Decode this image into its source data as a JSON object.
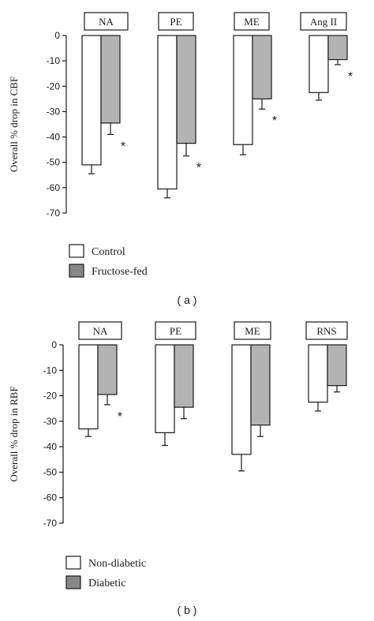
{
  "chart_data": [
    {
      "type": "bar",
      "panel_label": "( a )",
      "ylabel": "Overall % drop in CBF",
      "ylim": [
        -70,
        0
      ],
      "yticks": [
        0,
        -10,
        -20,
        -30,
        -40,
        -50,
        -60,
        -70
      ],
      "categories": [
        "NA",
        "PE",
        "ME",
        "Ang II"
      ],
      "series": [
        {
          "name": "Control",
          "color": "#ffffff",
          "values": [
            -51,
            -60.5,
            -43,
            -22.5
          ],
          "errors": [
            3.5,
            3.5,
            4,
            3
          ]
        },
        {
          "name": "Fructose-fed",
          "color": "#b3b3b3",
          "values": [
            -34.5,
            -42.5,
            -25,
            -9.5
          ],
          "errors": [
            4.5,
            5,
            4,
            2
          ]
        }
      ],
      "annotations": [
        {
          "category": "NA",
          "series": 1,
          "text": "*"
        },
        {
          "category": "PE",
          "series": 1,
          "text": "*"
        },
        {
          "category": "ME",
          "series": 1,
          "text": "*"
        },
        {
          "category": "Ang II",
          "series": 1,
          "text": "*"
        }
      ],
      "legend_position": "bottom-left",
      "legend_swatch_colors": [
        "#ffffff",
        "#888888"
      ]
    },
    {
      "type": "bar",
      "panel_label": "( b )",
      "ylabel": "Overall % drop in RBF",
      "ylim": [
        -70,
        0
      ],
      "yticks": [
        0,
        -10,
        -20,
        -30,
        -40,
        -50,
        -60,
        -70
      ],
      "categories": [
        "NA",
        "PE",
        "ME",
        "RNS"
      ],
      "series": [
        {
          "name": "Non-diabetic",
          "color": "#ffffff",
          "values": [
            -33,
            -34.5,
            -43,
            -22.5
          ],
          "errors": [
            3,
            5,
            6.5,
            3.5
          ]
        },
        {
          "name": "Diabetic",
          "color": "#b3b3b3",
          "values": [
            -19.5,
            -24.5,
            -31.5,
            -16
          ],
          "errors": [
            4,
            4.5,
            4.5,
            2.5
          ]
        }
      ],
      "annotations": [
        {
          "category": "NA",
          "series": 1,
          "text": "*"
        }
      ],
      "legend_position": "bottom-left",
      "legend_swatch_colors": [
        "#ffffff",
        "#888888"
      ]
    }
  ]
}
